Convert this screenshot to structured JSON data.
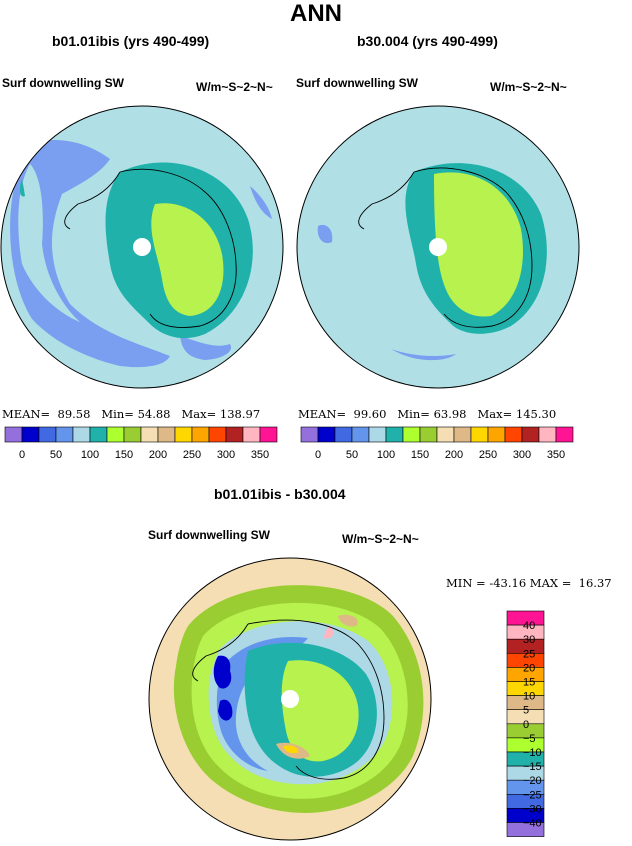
{
  "season": "ANN",
  "panels": [
    {
      "case": "b01.01ibis (yrs 490-499)",
      "variable": "Surf downwelling SW",
      "units": "W/m~S~2~N~",
      "stats": {
        "mean_label": "MEAN=",
        "mean": "89.58",
        "min_label": "Min=",
        "min": "54.88",
        "max_label": "Max=",
        "max": "138.97"
      }
    },
    {
      "case": "b30.004 (yrs 490-499)",
      "variable": "Surf downwelling SW",
      "units": "W/m~S~2~N~",
      "stats": {
        "mean_label": "MEAN=",
        "mean": "99.60",
        "min_label": "Min=",
        "min": "63.98",
        "max_label": "Max=",
        "max": "145.30"
      }
    }
  ],
  "diff": {
    "title": "b01.01ibis - b30.004",
    "variable": "Surf downwelling SW",
    "units": "W/m~S~2~N~",
    "stats": {
      "min_label": "MIN =",
      "min": "-43.16",
      "max_label": "MAX =",
      "max": "16.37"
    }
  },
  "colorbar_abs": {
    "colors": [
      "#9370db",
      "#0000cd",
      "#4169e1",
      "#6495ed",
      "#add8e6",
      "#20b2aa",
      "#adff2f",
      "#9acd32",
      "#f5deb3",
      "#deb887",
      "#ffd700",
      "#ffa500",
      "#ff4500",
      "#b22222",
      "#ffb6c1",
      "#ff1493"
    ],
    "labels": [
      "0",
      "50",
      "100",
      "150",
      "200",
      "250",
      "300",
      "350"
    ]
  },
  "colorbar_diff": {
    "colors": [
      "#ff1493",
      "#ffb6c1",
      "#b22222",
      "#ff4500",
      "#ffa500",
      "#ffd700",
      "#deb887",
      "#f5deb3",
      "#9acd32",
      "#adff2f",
      "#20b2aa",
      "#add8e6",
      "#6495ed",
      "#4169e1",
      "#0000cd",
      "#9370db"
    ],
    "labels": [
      "40",
      "30",
      "25",
      "20",
      "15",
      "10",
      "5",
      "0",
      "−5",
      "−10",
      "−15",
      "−20",
      "−25",
      "−30",
      "−40"
    ]
  },
  "map_colors": {
    "light_blue": "#b0e0e6",
    "blue": "#7b9ff0",
    "teal": "#20b2aa",
    "lime": "#b7f24f",
    "olive": "#9acd32",
    "wheat": "#f5deb3",
    "dark_blue": "#0000cd",
    "royal": "#4169e1",
    "tan": "#deb887",
    "gold": "#ffd700",
    "magenta": "#ff1493"
  }
}
